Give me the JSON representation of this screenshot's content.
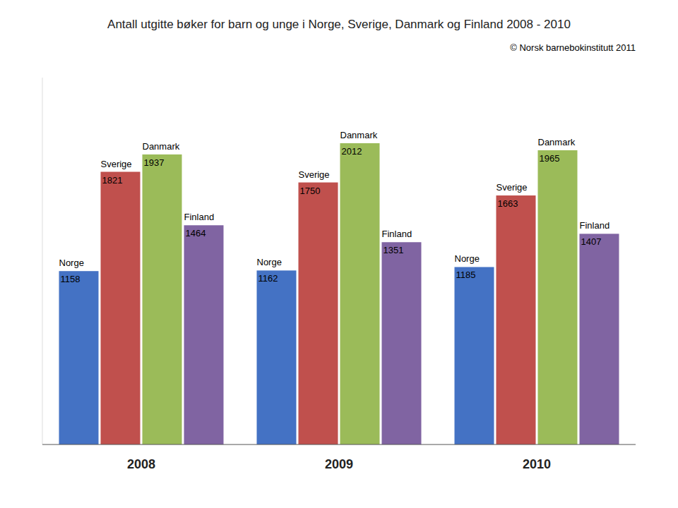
{
  "chart_data": {
    "type": "bar",
    "title": "Antall utgitte bøker for barn og unge i Norge, Sverige, Danmark og Finland 2008 - 2010",
    "annotations": [
      "© Norsk barnebokinstitutt 2011"
    ],
    "categories": [
      "2008",
      "2009",
      "2010"
    ],
    "series": [
      {
        "name": "Norge",
        "color": "#4472C4",
        "values": [
          1158,
          1162,
          1185
        ]
      },
      {
        "name": "Sverige",
        "color": "#C0504D",
        "values": [
          1821,
          1750,
          1663
        ]
      },
      {
        "name": "Danmark",
        "color": "#9BBB59",
        "values": [
          1937,
          2012,
          1965
        ]
      },
      {
        "name": "Finland",
        "color": "#8064A2",
        "values": [
          1464,
          1351,
          1407
        ]
      }
    ],
    "ylim": [
      0,
      2450
    ],
    "grid": false,
    "data_labels": true,
    "tick_labels": "x"
  }
}
